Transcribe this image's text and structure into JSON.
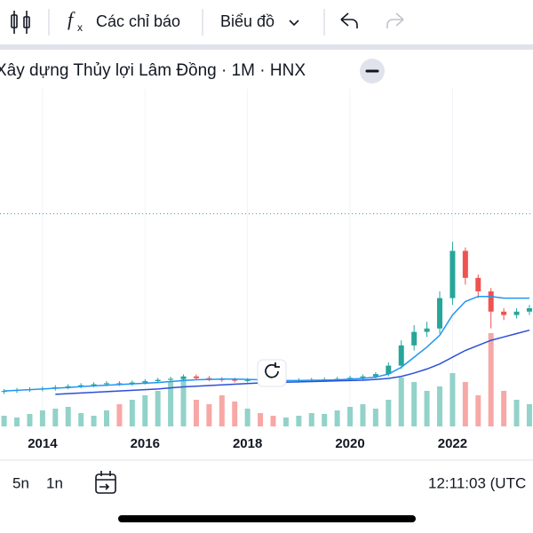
{
  "toolbar": {
    "indicators": "Các chỉ báo",
    "chart_type": "Biểu đồ",
    "fx_f": "f",
    "fx_x": "x"
  },
  "chart_data": {
    "type": "candlestick",
    "title": "Xây dựng Thủy lợi Lâm Đồng · 1M · HNX",
    "x": [
      2013.25,
      2013.5,
      2013.75,
      2014,
      2014.25,
      2014.5,
      2014.75,
      2015,
      2015.25,
      2015.5,
      2015.75,
      2016,
      2016.25,
      2016.5,
      2016.75,
      2017,
      2017.25,
      2017.5,
      2017.75,
      2018,
      2018.25,
      2018.5,
      2018.75,
      2019,
      2019.25,
      2019.5,
      2019.75,
      2020,
      2020.25,
      2020.5,
      2020.75,
      2021,
      2021.25,
      2021.5,
      2021.75,
      2022,
      2022.25,
      2022.5,
      2022.75,
      2023,
      2023.25,
      2023.5
    ],
    "open": [
      10.2,
      10.5,
      10.8,
      11,
      11.2,
      11.6,
      11.9,
      12.2,
      12.5,
      12.8,
      12.6,
      13,
      13.4,
      13.8,
      14.1,
      14.8,
      14.3,
      14,
      13.8,
      13.6,
      13.7,
      13.5,
      13.4,
      13.6,
      13.7,
      13.8,
      13.9,
      14.1,
      14.4,
      14.8,
      15.5,
      18,
      24,
      28,
      29,
      38,
      52,
      44,
      40,
      34,
      33,
      34
    ],
    "high": [
      11.1,
      11.4,
      11.6,
      11.8,
      12.2,
      12.5,
      12.8,
      13.1,
      13.4,
      13.4,
      13.6,
      14,
      14.4,
      14.7,
      15.4,
      15.4,
      14.9,
      14.6,
      14.4,
      14.3,
      14.3,
      14.1,
      14.2,
      14.3,
      14.4,
      14.5,
      14.7,
      15,
      15.4,
      16.1,
      19,
      25.5,
      30,
      31,
      40,
      54.7,
      53,
      45,
      41,
      35,
      35,
      36
    ],
    "low": [
      9.6,
      9.9,
      10.2,
      10.4,
      10.6,
      11,
      11.3,
      11.6,
      11.9,
      12,
      12,
      12.4,
      12.8,
      13.2,
      13.5,
      13.7,
      13.4,
      13.2,
      13,
      13,
      12.9,
      12.8,
      12.8,
      13,
      13.1,
      13.2,
      13.3,
      13.5,
      13.8,
      14.2,
      14.8,
      17,
      22.5,
      26.5,
      27.5,
      36,
      42,
      38,
      29,
      31.5,
      32,
      33
    ],
    "close": [
      10.5,
      10.8,
      11,
      11.2,
      11.6,
      11.9,
      12.2,
      12.5,
      12.8,
      12.6,
      13,
      13.4,
      13.8,
      14.1,
      14.8,
      14.3,
      14,
      13.8,
      13.6,
      13.7,
      13.5,
      13.4,
      13.6,
      13.7,
      13.8,
      13.9,
      14.1,
      14.4,
      14.8,
      15.5,
      18,
      24,
      28,
      29,
      38,
      52,
      44,
      40,
      34,
      33,
      34,
      35
    ],
    "volume": [
      12,
      10,
      14,
      18,
      20,
      22,
      15,
      12,
      18,
      25,
      30,
      35,
      40,
      50,
      55,
      30,
      25,
      35,
      28,
      20,
      15,
      12,
      10,
      12,
      15,
      14,
      18,
      22,
      25,
      20,
      30,
      55,
      50,
      40,
      45,
      60,
      50,
      35,
      105,
      40,
      30,
      25
    ],
    "ma_fast": [
      10.5,
      10.7,
      10.9,
      11.1,
      11.3,
      11.5,
      11.8,
      12,
      12.2,
      12.4,
      12.6,
      12.8,
      13,
      13.3,
      13.6,
      13.8,
      13.9,
      14,
      14,
      13.9,
      13.8,
      13.7,
      13.6,
      13.6,
      13.7,
      13.7,
      13.8,
      14,
      14.2,
      14.6,
      15.5,
      17.5,
      20.5,
      23.5,
      27,
      33,
      37,
      38.5,
      38.5,
      38,
      38,
      38
    ],
    "ma_slow": [
      null,
      null,
      null,
      null,
      9.5,
      9.7,
      9.9,
      10.1,
      10.3,
      10.5,
      10.7,
      10.9,
      11.1,
      11.4,
      11.7,
      11.9,
      12.1,
      12.3,
      12.5,
      12.7,
      12.9,
      13,
      13.1,
      13.2,
      13.3,
      13.4,
      13.5,
      13.6,
      13.7,
      13.9,
      14.2,
      14.8,
      15.8,
      17,
      18.5,
      20.5,
      22.5,
      24,
      25.5,
      26.5,
      27.5,
      28.5
    ],
    "price_line": 63,
    "up_color": "#26a69a",
    "down_color": "#ef5350",
    "up_volume_color": "#92d2c9",
    "down_volume_color": "#f7a8a6",
    "ma_fast_color": "#2196f3",
    "ma_slow_color": "#2c4fd6",
    "xlim": [
      2013.17,
      2023.57
    ],
    "ylim": [
      0,
      100
    ],
    "vlim": [
      0,
      380
    ],
    "xticks": [
      2014,
      2016,
      2018,
      2020,
      2022
    ],
    "grid": true
  },
  "footer": {
    "range_5": "5n",
    "range_1": "1n",
    "time": "12:11:03 (UTC"
  }
}
